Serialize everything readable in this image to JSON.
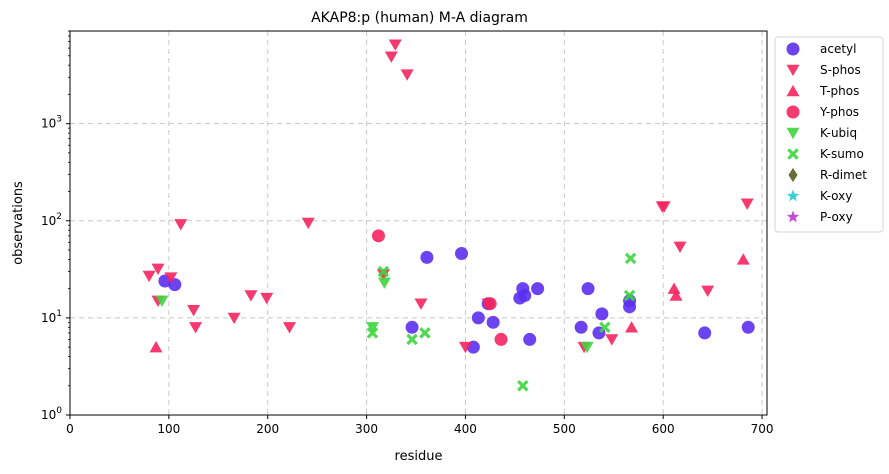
{
  "chart_data": {
    "type": "scatter",
    "title": "AKAP8:p (human) M-A diagram",
    "xlabel": "residue",
    "ylabel": "observations",
    "xlim": [
      0,
      705
    ],
    "ylim": [
      1,
      9000
    ],
    "yscale": "log",
    "grid": true,
    "legend_position": "outside-right-top",
    "x_ticks": [
      "0",
      "100",
      "200",
      "300",
      "400",
      "500",
      "600",
      "700"
    ],
    "y_ticks": [
      {
        "base": "10",
        "exp": "0"
      },
      {
        "base": "10",
        "exp": "1"
      },
      {
        "base": "10",
        "exp": "2"
      },
      {
        "base": "10",
        "exp": "3"
      }
    ],
    "series": [
      {
        "name": "acetyl",
        "marker": "circle",
        "color": "#5b2ff0",
        "points": [
          [
            96,
            24
          ],
          [
            106,
            22
          ],
          [
            346,
            8
          ],
          [
            361,
            42
          ],
          [
            396,
            46
          ],
          [
            408,
            5
          ],
          [
            413,
            10
          ],
          [
            423,
            14
          ],
          [
            428,
            9
          ],
          [
            455,
            16
          ],
          [
            458,
            20
          ],
          [
            460,
            17
          ],
          [
            465,
            6
          ],
          [
            473,
            20
          ],
          [
            517,
            8
          ],
          [
            524,
            20
          ],
          [
            535,
            7
          ],
          [
            538,
            11
          ],
          [
            566,
            13
          ],
          [
            566,
            15
          ],
          [
            642,
            7
          ],
          [
            686,
            8
          ]
        ]
      },
      {
        "name": "S-phos",
        "marker": "triangle-down",
        "color": "#f5245e",
        "points": [
          [
            80,
            27
          ],
          [
            89,
            32
          ],
          [
            89,
            15
          ],
          [
            102,
            26
          ],
          [
            112,
            92
          ],
          [
            125,
            12
          ],
          [
            127,
            8
          ],
          [
            166,
            10
          ],
          [
            183,
            17
          ],
          [
            199,
            16
          ],
          [
            222,
            8
          ],
          [
            241,
            95
          ],
          [
            317,
            28
          ],
          [
            325,
            4900
          ],
          [
            329,
            6500
          ],
          [
            341,
            3200
          ],
          [
            355,
            14
          ],
          [
            400,
            5
          ],
          [
            423,
            14
          ],
          [
            520,
            5
          ],
          [
            548,
            6
          ],
          [
            599,
            140
          ],
          [
            601,
            140
          ],
          [
            617,
            54
          ],
          [
            645,
            19
          ],
          [
            685,
            150
          ]
        ]
      },
      {
        "name": "T-phos",
        "marker": "triangle-up",
        "color": "#f5245e",
        "points": [
          [
            87,
            5
          ],
          [
            568,
            8
          ],
          [
            611,
            20
          ],
          [
            613,
            17
          ],
          [
            681,
            40
          ]
        ]
      },
      {
        "name": "Y-phos",
        "marker": "circle",
        "color": "#f5245e",
        "points": [
          [
            312,
            70
          ],
          [
            425,
            14
          ],
          [
            436,
            6
          ]
        ]
      },
      {
        "name": "K-ubiq",
        "marker": "triangle-down",
        "color": "#3ed63e",
        "points": [
          [
            93,
            15
          ],
          [
            306,
            8
          ],
          [
            318,
            23
          ],
          [
            523,
            5
          ]
        ]
      },
      {
        "name": "K-sumo",
        "marker": "x",
        "color": "#3ed63e",
        "points": [
          [
            306,
            7
          ],
          [
            317,
            30
          ],
          [
            346,
            6
          ],
          [
            359,
            7
          ],
          [
            458,
            2
          ],
          [
            541,
            8
          ],
          [
            566,
            17
          ],
          [
            567,
            41
          ]
        ]
      },
      {
        "name": "R-dimet",
        "marker": "diamond",
        "color": "#6b6b3a",
        "points": []
      },
      {
        "name": "K-oxy",
        "marker": "star",
        "color": "#3ecfd6",
        "points": []
      },
      {
        "name": "P-oxy",
        "marker": "star",
        "color": "#c64bd6",
        "points": []
      }
    ]
  }
}
